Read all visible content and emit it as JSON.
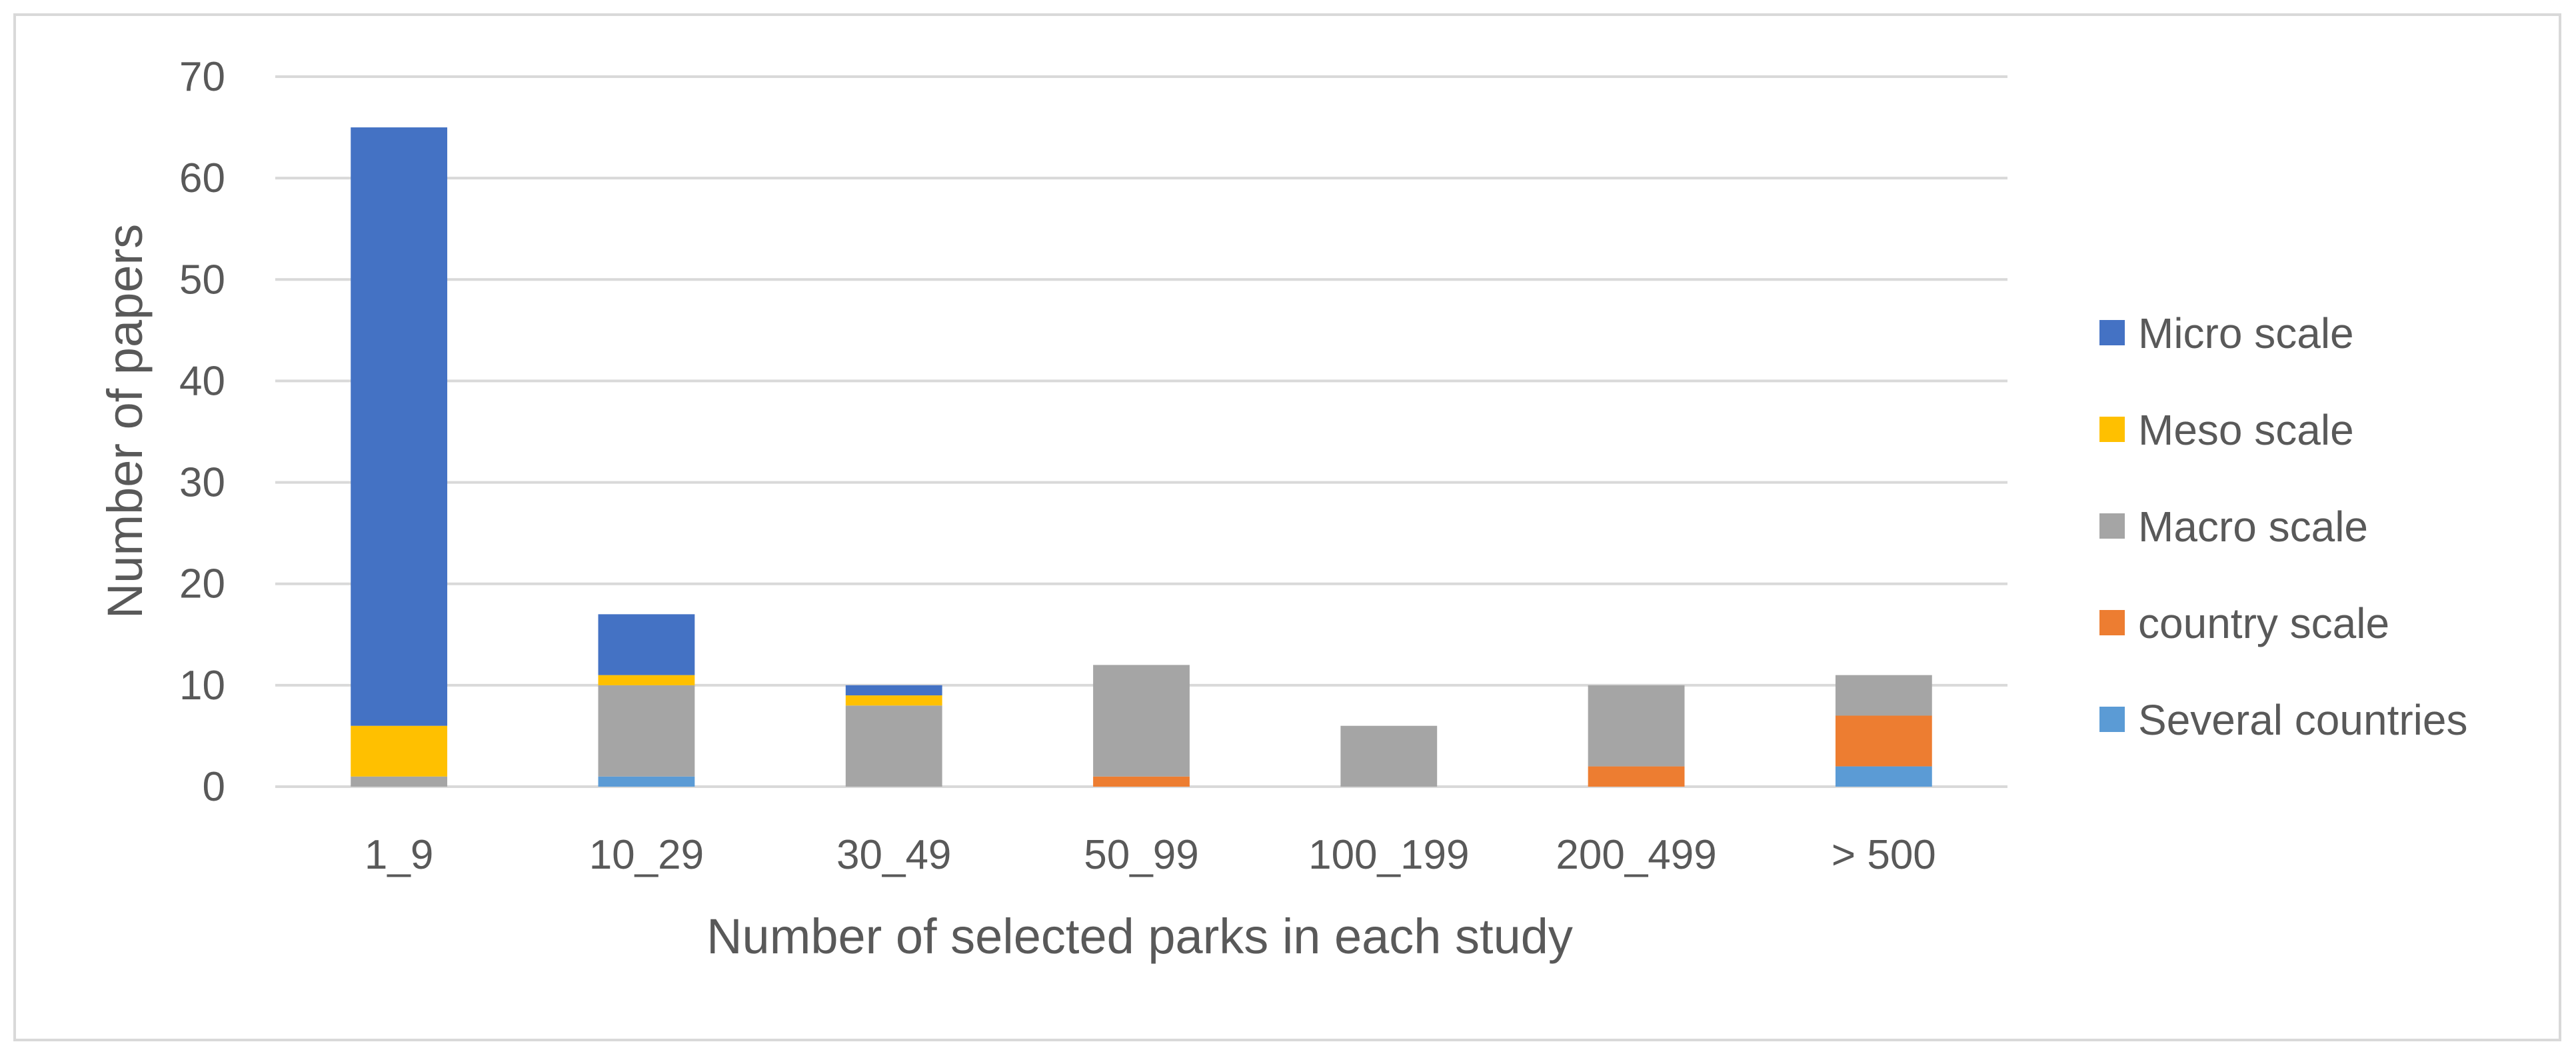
{
  "chart_data": {
    "type": "bar",
    "stacked": true,
    "title": "",
    "xlabel": "Number of selected parks in each study",
    "ylabel": "Number of papers",
    "ylim": [
      0,
      70
    ],
    "yticks": [
      0,
      10,
      20,
      30,
      40,
      50,
      60,
      70
    ],
    "grid": true,
    "legend_position": "right",
    "categories": [
      "1_9",
      "10_29",
      "30_49",
      "50_99",
      "100_199",
      "200_499",
      "> 500"
    ],
    "series": [
      {
        "name": "Several countries",
        "color": "#5b9bd5",
        "values": [
          0,
          1,
          0,
          0,
          0,
          0,
          2
        ]
      },
      {
        "name": "country scale",
        "color": "#ed7d31",
        "values": [
          0,
          0,
          0,
          1,
          0,
          2,
          5
        ]
      },
      {
        "name": "Macro scale",
        "color": "#a5a5a5",
        "values": [
          1,
          9,
          8,
          11,
          6,
          8,
          4
        ]
      },
      {
        "name": "Meso scale",
        "color": "#ffc000",
        "values": [
          5,
          1,
          1,
          0,
          0,
          0,
          0
        ]
      },
      {
        "name": "Micro scale",
        "color": "#4472c4",
        "values": [
          59,
          6,
          1,
          0,
          0,
          0,
          0
        ]
      }
    ],
    "legend_order": [
      "Micro scale",
      "Meso scale",
      "Macro scale",
      "country scale",
      "Several countries"
    ]
  }
}
